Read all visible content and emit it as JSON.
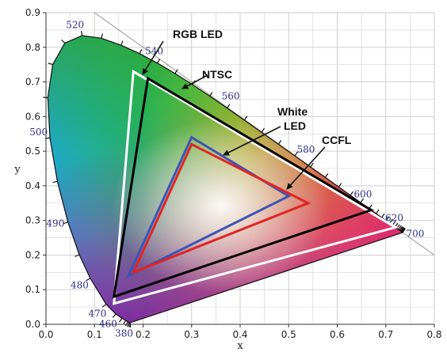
{
  "chart_data": {
    "type": "scatter",
    "title": "",
    "xlabel": "x",
    "ylabel": "y",
    "xlim": [
      0.0,
      0.8
    ],
    "ylim": [
      0.0,
      0.9
    ],
    "x_ticks": [
      "0.0",
      "0.1",
      "0.2",
      "0.3",
      "0.4",
      "0.5",
      "0.6",
      "0.7",
      "0.8"
    ],
    "y_ticks": [
      "0.0",
      "0.1",
      "0.2",
      "0.3",
      "0.4",
      "0.5",
      "0.6",
      "0.7",
      "0.8",
      "0.9"
    ],
    "grid": true,
    "locus": [
      [
        0.1741,
        0.005
      ],
      [
        0.1733,
        0.0048
      ],
      [
        0.1726,
        0.0048
      ],
      [
        0.1714,
        0.0051
      ],
      [
        0.1689,
        0.0069
      ],
      [
        0.1644,
        0.0109
      ],
      [
        0.1566,
        0.0177
      ],
      [
        0.144,
        0.0297
      ],
      [
        0.1241,
        0.0578
      ],
      [
        0.0913,
        0.1327
      ],
      [
        0.0687,
        0.2007
      ],
      [
        0.0454,
        0.295
      ],
      [
        0.0235,
        0.4127
      ],
      [
        0.0082,
        0.5384
      ],
      [
        0.0039,
        0.6548
      ],
      [
        0.0139,
        0.7502
      ],
      [
        0.0389,
        0.812
      ],
      [
        0.0743,
        0.8338
      ],
      [
        0.1142,
        0.8262
      ],
      [
        0.1547,
        0.8059
      ],
      [
        0.1929,
        0.7816
      ],
      [
        0.2296,
        0.7543
      ],
      [
        0.2658,
        0.7243
      ],
      [
        0.3016,
        0.6923
      ],
      [
        0.3373,
        0.6589
      ],
      [
        0.3731,
        0.6245
      ],
      [
        0.4087,
        0.5896
      ],
      [
        0.4441,
        0.5547
      ],
      [
        0.4788,
        0.5202
      ],
      [
        0.5125,
        0.4866
      ],
      [
        0.5448,
        0.4544
      ],
      [
        0.5752,
        0.4242
      ],
      [
        0.6029,
        0.3965
      ],
      [
        0.627,
        0.3725
      ],
      [
        0.6482,
        0.3514
      ],
      [
        0.6658,
        0.334
      ],
      [
        0.6801,
        0.3197
      ],
      [
        0.6915,
        0.3083
      ],
      [
        0.7006,
        0.2993
      ],
      [
        0.7079,
        0.292
      ],
      [
        0.714,
        0.2859
      ],
      [
        0.719,
        0.2809
      ],
      [
        0.723,
        0.277
      ],
      [
        0.726,
        0.274
      ],
      [
        0.7283,
        0.2717
      ],
      [
        0.73,
        0.27
      ],
      [
        0.7311,
        0.2689
      ],
      [
        0.732,
        0.268
      ],
      [
        0.7327,
        0.2673
      ],
      [
        0.7334,
        0.2666
      ],
      [
        0.734,
        0.266
      ],
      [
        0.7344,
        0.2656
      ],
      [
        0.7346,
        0.2654
      ],
      [
        0.7347,
        0.2653
      ]
    ],
    "wavelength_labels": [
      {
        "text": "380",
        "x": 0.1741,
        "y": 0.005
      },
      {
        "text": "460",
        "x": 0.144,
        "y": 0.0297
      },
      {
        "text": "470",
        "x": 0.1241,
        "y": 0.0578
      },
      {
        "text": "480",
        "x": 0.0913,
        "y": 0.1327
      },
      {
        "text": "490",
        "x": 0.0454,
        "y": 0.295
      },
      {
        "text": "500",
        "x": 0.0082,
        "y": 0.5384
      },
      {
        "text": "520",
        "x": 0.0743,
        "y": 0.8338
      },
      {
        "text": "540",
        "x": 0.2296,
        "y": 0.7543
      },
      {
        "text": "560",
        "x": 0.3731,
        "y": 0.6245
      },
      {
        "text": "580",
        "x": 0.5125,
        "y": 0.4866
      },
      {
        "text": "600",
        "x": 0.627,
        "y": 0.3725
      },
      {
        "text": "620",
        "x": 0.6915,
        "y": 0.3083
      },
      {
        "text": "700",
        "x": 0.7347,
        "y": 0.2653
      }
    ],
    "series": [
      {
        "name": "RGB LED",
        "color": "#ffffff",
        "points": [
          [
            0.18,
            0.73
          ],
          [
            0.72,
            0.28
          ],
          [
            0.14,
            0.06
          ]
        ]
      },
      {
        "name": "NTSC",
        "color": "#000000",
        "points": [
          [
            0.21,
            0.71
          ],
          [
            0.67,
            0.33
          ],
          [
            0.14,
            0.08
          ]
        ]
      },
      {
        "name": "White LED",
        "color": "#3b55b5",
        "points": [
          [
            0.3,
            0.54
          ],
          [
            0.5,
            0.37
          ],
          [
            0.17,
            0.14
          ]
        ]
      },
      {
        "name": "CCFL",
        "color": "#e02424",
        "points": [
          [
            0.3,
            0.52
          ],
          [
            0.54,
            0.35
          ],
          [
            0.18,
            0.15
          ]
        ]
      }
    ],
    "annotations": [
      {
        "text": "RGB LED"
      },
      {
        "text": "NTSC"
      },
      {
        "text": "White"
      },
      {
        "text": "LED"
      },
      {
        "text": "CCFL"
      }
    ]
  }
}
